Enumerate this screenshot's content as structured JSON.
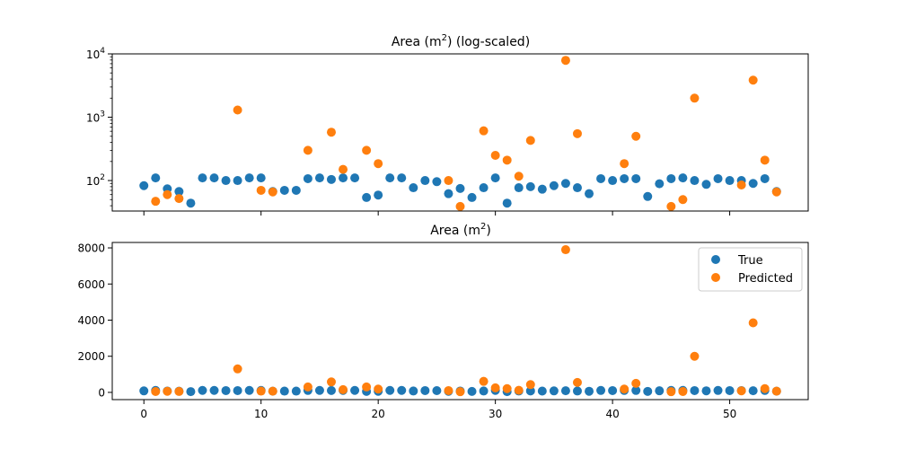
{
  "chart_data": [
    {
      "type": "scatter",
      "title": "Area (m",
      "title_sup": "2",
      "title_suffix": ") (log-scaled)",
      "yscale": "log",
      "xlim": [
        -2.7,
        56.7
      ],
      "ylim": [
        33,
        10000
      ],
      "x_ticks": [
        0,
        10,
        20,
        30,
        40,
        50
      ],
      "y_ticks": [
        {
          "value": 100,
          "base": "10",
          "exp": "2"
        },
        {
          "value": 1000,
          "base": "10",
          "exp": "3"
        },
        {
          "value": 10000,
          "base": "10",
          "exp": "4"
        }
      ],
      "x_tick_labels_shown": false,
      "legend": false,
      "series": [
        {
          "name": "True",
          "color": "#1f77b4",
          "x": [
            0,
            1,
            2,
            3,
            4,
            5,
            6,
            7,
            8,
            9,
            10,
            11,
            12,
            13,
            14,
            15,
            16,
            17,
            18,
            19,
            20,
            21,
            22,
            23,
            24,
            25,
            26,
            27,
            28,
            29,
            30,
            31,
            32,
            33,
            34,
            35,
            36,
            37,
            38,
            39,
            40,
            41,
            42,
            43,
            44,
            45,
            46,
            47,
            48,
            49,
            50,
            51,
            52,
            53,
            54
          ],
          "y": [
            83,
            110,
            74,
            67,
            44,
            110,
            110,
            100,
            100,
            110,
            110,
            67,
            70,
            70,
            107,
            110,
            104,
            110,
            110,
            54,
            59,
            110,
            110,
            77,
            100,
            96,
            62,
            75,
            54,
            77,
            110,
            44,
            77,
            80,
            73,
            83,
            90,
            77,
            62,
            107,
            100,
            107,
            107,
            56,
            89,
            107,
            110,
            100,
            87,
            107,
            100,
            100,
            90,
            107,
            67
          ]
        },
        {
          "name": "Predicted",
          "color": "#ff7f0e",
          "x": [
            1,
            2,
            3,
            8,
            10,
            11,
            14,
            16,
            17,
            19,
            20,
            26,
            27,
            29,
            30,
            31,
            32,
            33,
            36,
            37,
            41,
            42,
            45,
            46,
            47,
            51,
            52,
            53,
            54
          ],
          "y": [
            47,
            60,
            52,
            1300,
            70,
            66,
            300,
            580,
            150,
            300,
            185,
            100,
            39,
            610,
            250,
            210,
            117,
            430,
            7900,
            550,
            185,
            500,
            39,
            50,
            2000,
            85,
            3850,
            210,
            66
          ]
        }
      ]
    },
    {
      "type": "scatter",
      "title": "Area (m",
      "title_sup": "2",
      "title_suffix": ")",
      "yscale": "linear",
      "xlim": [
        -2.7,
        56.7
      ],
      "ylim": [
        -400,
        8300
      ],
      "x_ticks": [
        0,
        10,
        20,
        30,
        40,
        50
      ],
      "x_tick_labels": [
        "0",
        "10",
        "20",
        "30",
        "40",
        "50"
      ],
      "y_ticks": [
        0,
        2000,
        4000,
        6000,
        8000
      ],
      "y_tick_labels": [
        "0",
        "2000",
        "4000",
        "6000",
        "8000"
      ],
      "legend": true,
      "legend_position": "top-right",
      "legend_entries": [
        "True",
        "Predicted"
      ]
    }
  ]
}
